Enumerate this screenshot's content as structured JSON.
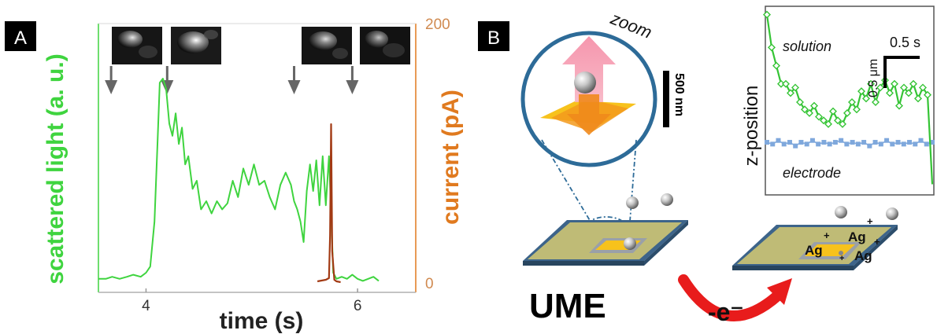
{
  "panelA": {
    "letter": "A",
    "y_left_label": "scattered light  (a. u.)",
    "y_right_label": "current (pA)",
    "right_tick_top": "200",
    "right_tick_bottom": "0",
    "xlabel": "time (s)",
    "colors": {
      "light": "#3fd43f",
      "current": "#e07a1f",
      "current_trace": "#a23a14",
      "axis": "#b0b0b0"
    }
  },
  "chart_data": {
    "type": "line",
    "title": "",
    "xlabel": "time (s)",
    "ylabel": "scattered light  (a. u.)",
    "y2label": "current (pA)",
    "xlim": [
      3.55,
      6.55
    ],
    "xticks": [
      "4",
      "6"
    ],
    "y2lim": [
      0,
      200
    ],
    "y2ticks": [
      "0",
      "200"
    ],
    "event_times": [
      3.67,
      4.2,
      5.4,
      5.95
    ],
    "series": [
      {
        "axis": "left",
        "color": "#3fd43f",
        "x": [
          3.55,
          3.62,
          3.68,
          3.75,
          3.82,
          3.88,
          3.95,
          4.0,
          4.04,
          4.08,
          4.11,
          4.13,
          4.16,
          4.19,
          4.22,
          4.25,
          4.28,
          4.31,
          4.34,
          4.37,
          4.4,
          4.44,
          4.48,
          4.52,
          4.57,
          4.62,
          4.67,
          4.72,
          4.77,
          4.82,
          4.87,
          4.92,
          4.97,
          5.02,
          5.07,
          5.12,
          5.17,
          5.22,
          5.27,
          5.32,
          5.37,
          5.4,
          5.43,
          5.46,
          5.49,
          5.52,
          5.55,
          5.58,
          5.61,
          5.64,
          5.67,
          5.7,
          5.73,
          5.75,
          5.77,
          5.8,
          5.85,
          5.9,
          5.95,
          6.0,
          6.05,
          6.1,
          6.15,
          6.2
        ],
        "y": [
          0.02,
          0.02,
          0.03,
          0.02,
          0.03,
          0.04,
          0.03,
          0.05,
          0.08,
          0.3,
          0.7,
          0.98,
          1.0,
          0.95,
          0.78,
          0.72,
          0.83,
          0.68,
          0.76,
          0.58,
          0.62,
          0.46,
          0.5,
          0.36,
          0.4,
          0.34,
          0.4,
          0.36,
          0.39,
          0.5,
          0.42,
          0.56,
          0.48,
          0.58,
          0.48,
          0.5,
          0.42,
          0.36,
          0.48,
          0.54,
          0.48,
          0.4,
          0.36,
          0.3,
          0.2,
          0.45,
          0.58,
          0.45,
          0.6,
          0.38,
          0.62,
          0.38,
          0.62,
          0.35,
          0.05,
          0.02,
          0.03,
          0.02,
          0.04,
          0.02,
          0.01,
          0.02,
          0.03,
          0.01
        ]
      },
      {
        "axis": "right",
        "color": "#a23a14",
        "x": [
          5.62,
          5.66,
          5.7,
          5.73,
          5.74,
          5.75,
          5.76,
          5.78,
          5.8,
          5.84
        ],
        "y": [
          2,
          3,
          4,
          6,
          60,
          200,
          40,
          4,
          2,
          1
        ]
      }
    ]
  },
  "panelB": {
    "letter": "B",
    "zoom_label": "zoom",
    "scale_500nm": "500 nm",
    "ume_label": "UME",
    "electron_label": "-e⁻",
    "ag_labels": [
      "Ag",
      "Ag",
      "Ag"
    ],
    "plus_sign": "+",
    "inset": {
      "ylabel": "z-position",
      "solution_label": "solution",
      "electrode_label": "electrode",
      "scale_time": "0.5 s",
      "scale_um": "0.5 μm",
      "colors": {
        "solution": "#35c435",
        "electrode": "#7fa8dc"
      },
      "solution_trace_y": [
        0.98,
        0.8,
        0.7,
        0.6,
        0.6,
        0.55,
        0.58,
        0.5,
        0.46,
        0.44,
        0.48,
        0.42,
        0.4,
        0.38,
        0.45,
        0.4,
        0.38,
        0.44,
        0.5,
        0.46,
        0.56,
        0.52,
        0.6,
        0.5,
        0.58,
        0.62,
        0.55,
        0.6,
        0.48,
        0.58,
        0.55,
        0.6,
        0.52,
        0.58,
        0.54,
        0.05
      ],
      "electrode_trace_y": [
        0.28,
        0.27,
        0.29,
        0.27,
        0.28,
        0.26,
        0.28,
        0.27,
        0.29,
        0.27,
        0.28,
        0.27,
        0.28,
        0.29,
        0.27,
        0.28,
        0.27,
        0.28,
        0.26,
        0.28,
        0.27,
        0.29,
        0.27,
        0.28,
        0.27,
        0.28,
        0.27,
        0.29,
        0.27,
        0.28
      ]
    }
  }
}
